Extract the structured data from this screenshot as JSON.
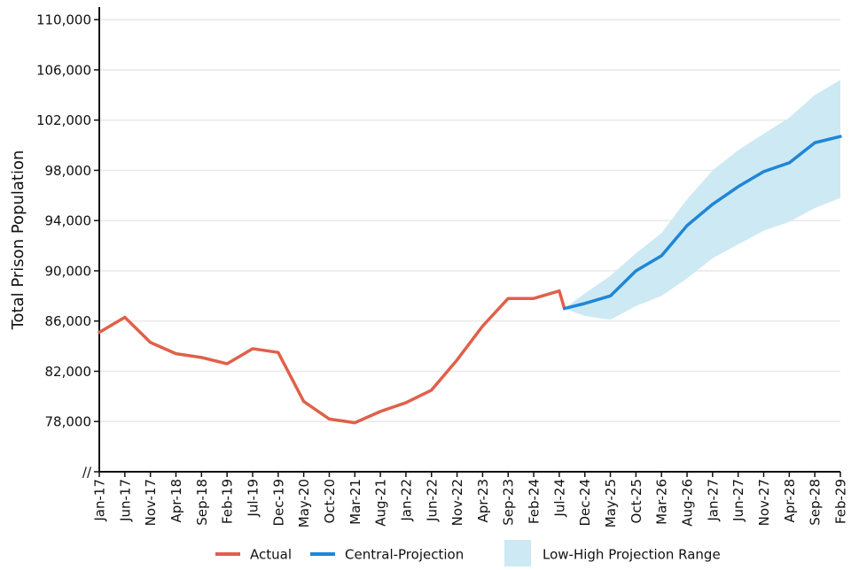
{
  "chart_data": {
    "type": "line",
    "title": "",
    "xlabel": "",
    "ylabel": "Total Prison Population",
    "ylim": [
      74000,
      111000
    ],
    "y_ticks": [
      110000,
      106000,
      102000,
      98000,
      94000,
      90000,
      86000,
      82000,
      78000
    ],
    "y_tick_labels": [
      "110,000",
      "106,000",
      "102,000",
      "98,000",
      "94,000",
      "90,000",
      "86,000",
      "82,000",
      "78,000",
      "//"
    ],
    "x_tick_labels": [
      "Jan-17",
      "Jun-17",
      "Nov-17",
      "Apr-18",
      "Sep-18",
      "Feb-19",
      "Jul-19",
      "Dec-19",
      "May-20",
      "Oct-20",
      "Mar-21",
      "Aug-21",
      "Jan-22",
      "Jun-22",
      "Nov-22",
      "Apr-23",
      "Sep-23",
      "Feb-24",
      "Jul-24",
      "Dec-24",
      "May-25",
      "Oct-25",
      "Mar-26",
      "Aug-26",
      "Jan-27",
      "Jun-27",
      "Nov-27",
      "Apr-28",
      "Sep-28",
      "Feb-29"
    ],
    "grid": "horizontal",
    "legend_position": "bottom",
    "colors": {
      "actual": "#e0604a",
      "central": "#1f86d6",
      "range": "#cde9f3"
    },
    "series": [
      {
        "name": "Actual",
        "x": [
          "Jan-17",
          "Jun-17",
          "Nov-17",
          "Apr-18",
          "Sep-18",
          "Feb-19",
          "Jul-19",
          "Dec-19",
          "May-20",
          "Oct-20",
          "Mar-21",
          "Aug-21",
          "Jan-22",
          "Jun-22",
          "Nov-22",
          "Apr-23",
          "Sep-23",
          "Feb-24",
          "Jul-24",
          "Aug-24"
        ],
        "values": [
          85100,
          86300,
          84300,
          83400,
          83100,
          82600,
          83800,
          83500,
          79600,
          78200,
          77900,
          78800,
          79500,
          80500,
          82900,
          85600,
          87800,
          87800,
          88400,
          87000
        ]
      },
      {
        "name": "Central-Projection",
        "x": [
          "Aug-24",
          "Dec-24",
          "May-25",
          "Oct-25",
          "Mar-26",
          "Aug-26",
          "Jan-27",
          "Jun-27",
          "Nov-27",
          "Apr-28",
          "Sep-28",
          "Feb-29"
        ],
        "values": [
          87000,
          87400,
          88000,
          90000,
          91200,
          93600,
          95300,
          96700,
          97900,
          98600,
          100200,
          100700
        ]
      },
      {
        "name": "Low-High Projection Range",
        "x": [
          "Aug-24",
          "Dec-24",
          "May-25",
          "Oct-25",
          "Mar-26",
          "Aug-26",
          "Jan-27",
          "Jun-27",
          "Nov-27",
          "Apr-28",
          "Sep-28",
          "Feb-29"
        ],
        "low": [
          87000,
          86400,
          86100,
          87200,
          88000,
          89400,
          91000,
          92100,
          93200,
          93900,
          95000,
          95800
        ],
        "high": [
          87000,
          88200,
          89600,
          91400,
          93000,
          95700,
          98000,
          99600,
          100900,
          102200,
          104000,
          105200
        ]
      }
    ]
  }
}
